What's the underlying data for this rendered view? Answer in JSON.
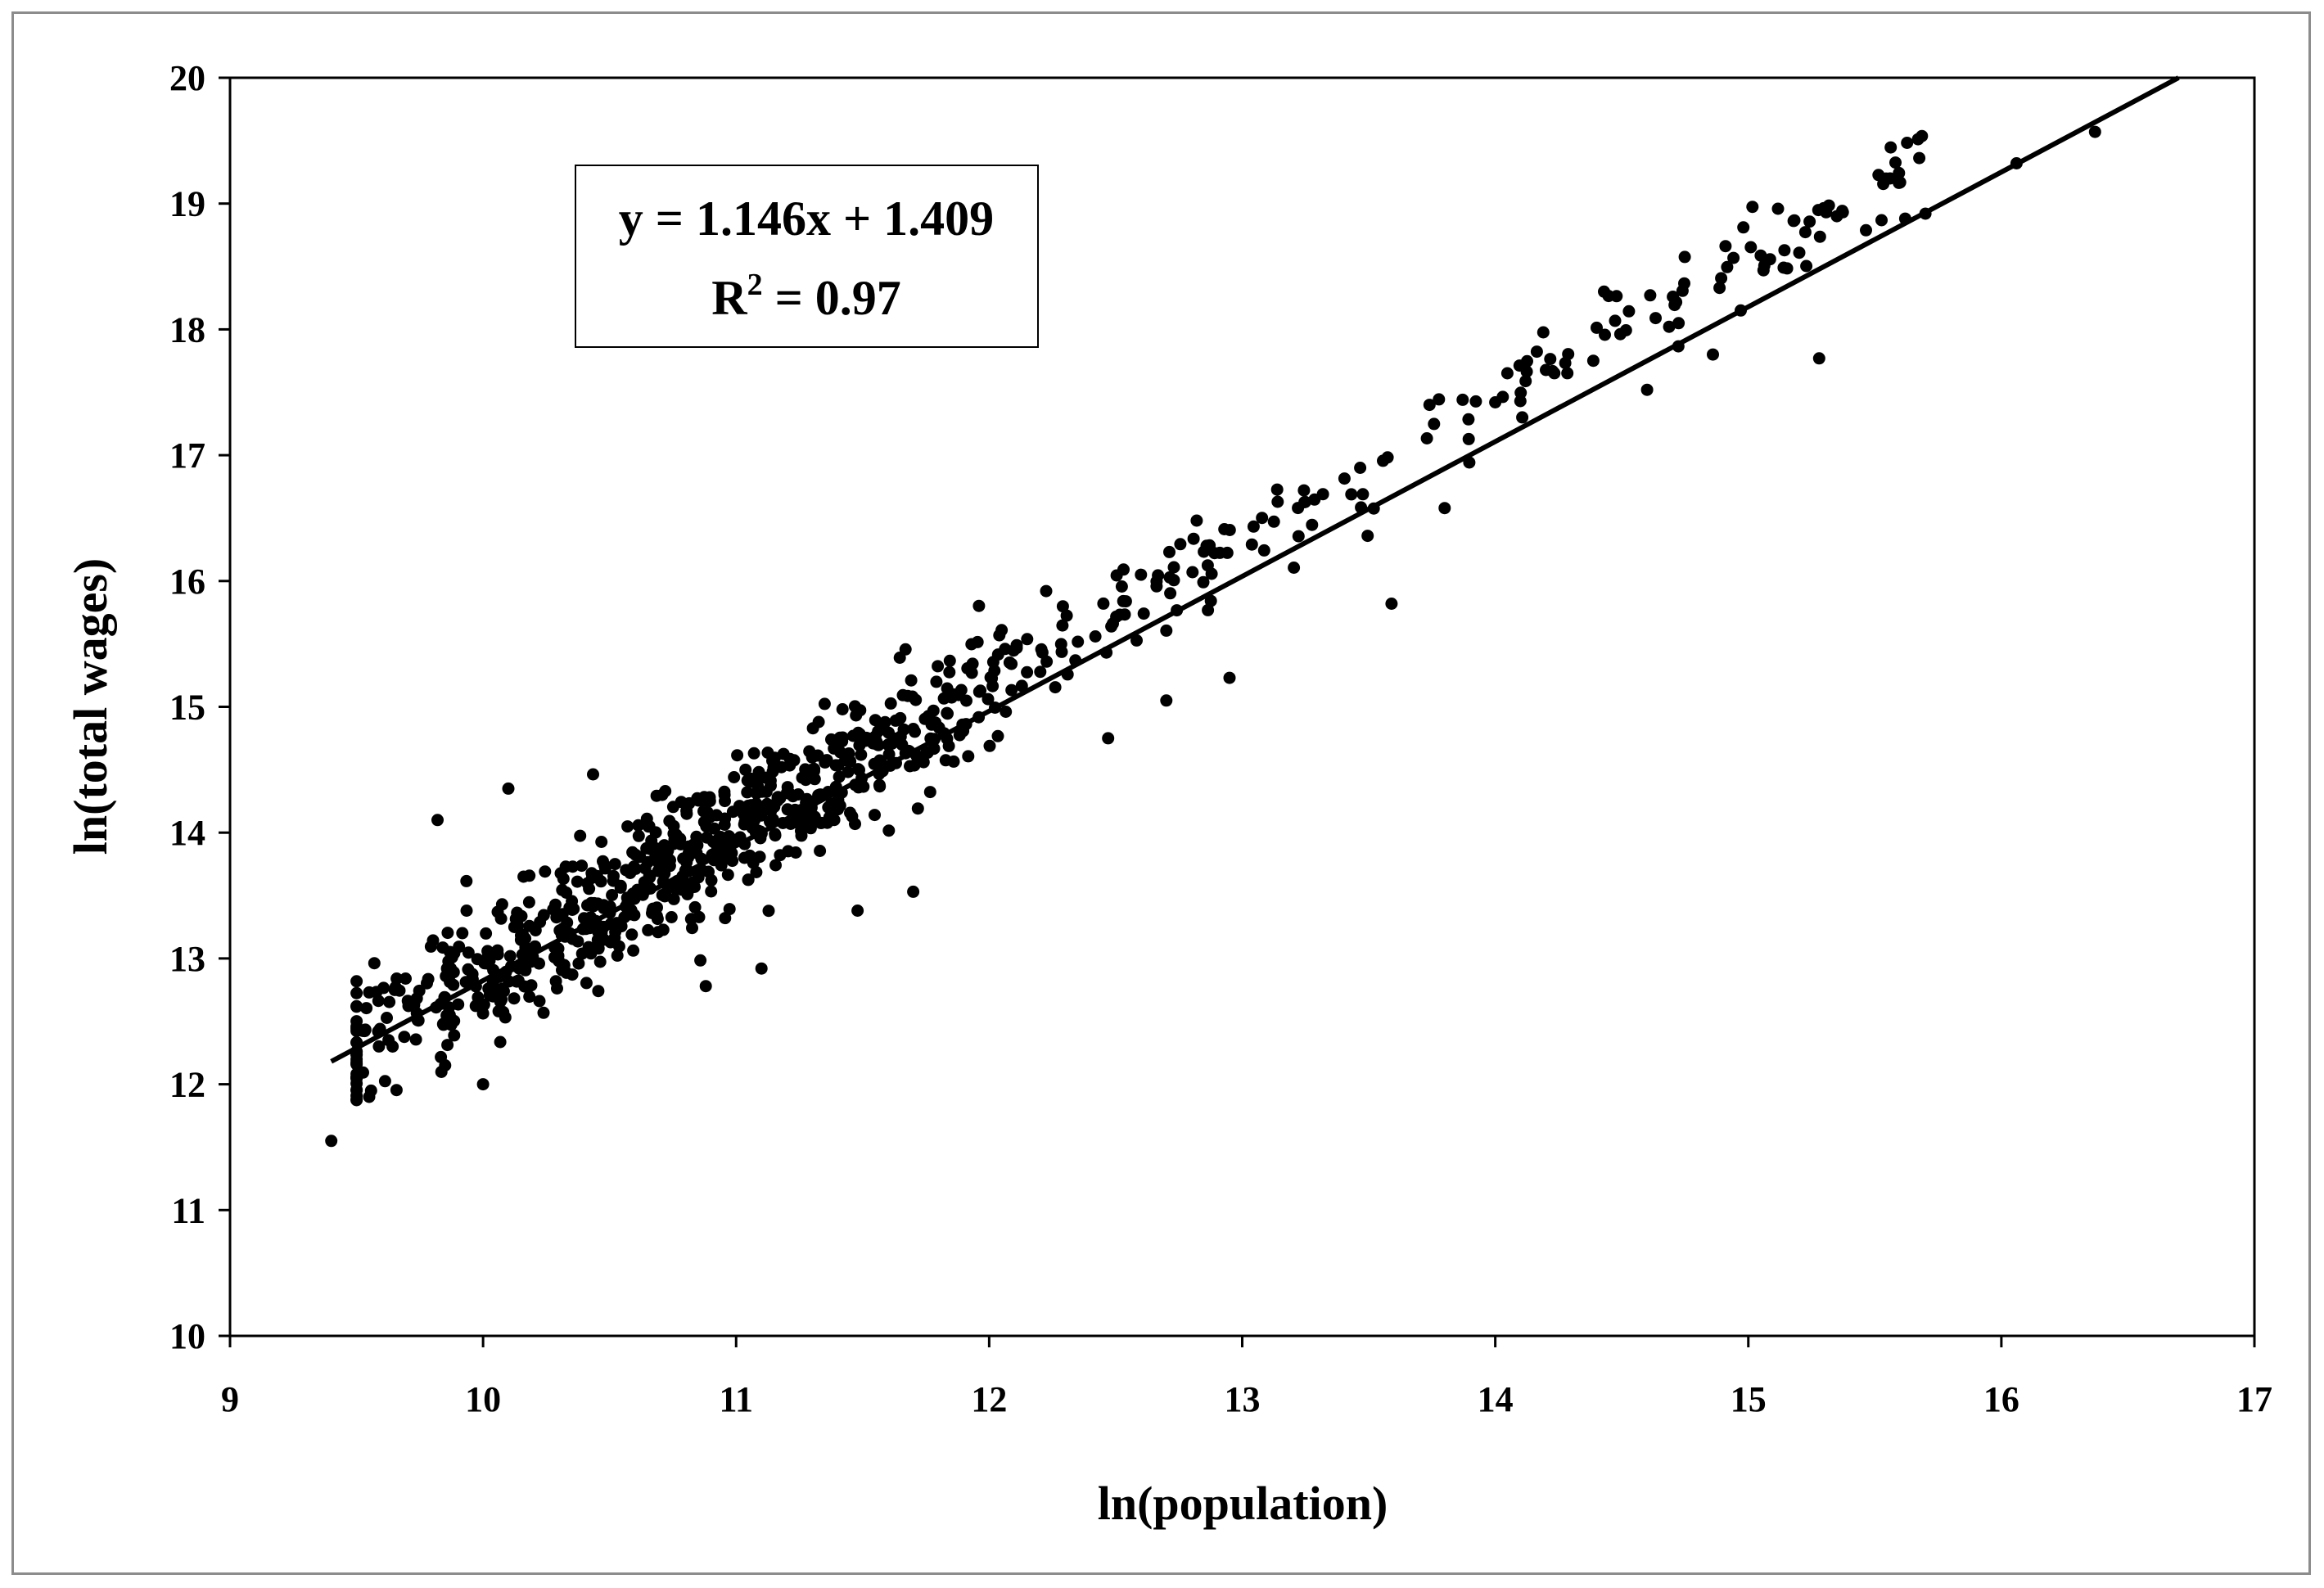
{
  "chart_data": {
    "type": "scatter",
    "title": "",
    "xlabel": "ln(population)",
    "ylabel": "ln(total wages)",
    "xlim": [
      9,
      17
    ],
    "ylim": [
      10,
      20
    ],
    "xticks": [
      "9",
      "10",
      "11",
      "12",
      "13",
      "14",
      "15",
      "16",
      "17"
    ],
    "yticks": [
      "10",
      "11",
      "12",
      "13",
      "14",
      "15",
      "16",
      "17",
      "18",
      "19",
      "20"
    ],
    "grid": false,
    "legend": "none",
    "point_color": "#000000",
    "line_color": "#000000",
    "trendline": {
      "slope": 1.146,
      "intercept": 1.409,
      "x_range": [
        9.4,
        16.7
      ],
      "equation_label": "y = 1.146x + 1.409",
      "r2_base": "R",
      "r2_exponent": "2",
      "r2_value": " = 0.97"
    },
    "outliers": [
      [
        9.4,
        11.55
      ],
      [
        9.82,
        14.1
      ],
      [
        10.1,
        14.35
      ],
      [
        16.37,
        19.57
      ],
      [
        16.06,
        19.32
      ],
      [
        15.56,
        19.2
      ],
      [
        14.43,
        18.3
      ],
      [
        15.28,
        17.77
      ],
      [
        13.59,
        15.82
      ],
      [
        13.74,
        17.4
      ],
      [
        12.82,
        16.48
      ],
      [
        11.7,
        13.53
      ],
      [
        12.7,
        15.05
      ],
      [
        12.95,
        15.23
      ],
      [
        10.16,
        13.65
      ],
      [
        10.72,
        14.33
      ],
      [
        10.88,
        12.78
      ],
      [
        11.48,
        13.38
      ],
      [
        15.35,
        18.9
      ],
      [
        15.06,
        18.47
      ],
      [
        14.86,
        17.8
      ],
      [
        14.6,
        17.52
      ],
      [
        13.8,
        16.58
      ],
      [
        13.14,
        16.63
      ],
      [
        12.6,
        16.05
      ],
      [
        9.55,
        11.9
      ],
      [
        9.55,
        12.73
      ],
      [
        9.85,
        12.15
      ],
      [
        10.0,
        12.0
      ],
      [
        11.1,
        12.92
      ],
      [
        12.47,
        14.75
      ],
      [
        14.0,
        17.42
      ],
      [
        14.97,
        18.15
      ],
      [
        15.62,
        18.88
      ],
      [
        15.7,
        18.92
      ]
    ],
    "cluster": {
      "count": 900,
      "seed": 20240611,
      "x_min": 9.5,
      "x_max": 15.7,
      "x_mode": 10.9,
      "residual_sd_low": 0.27,
      "residual_sd_high": 0.17
    }
  }
}
